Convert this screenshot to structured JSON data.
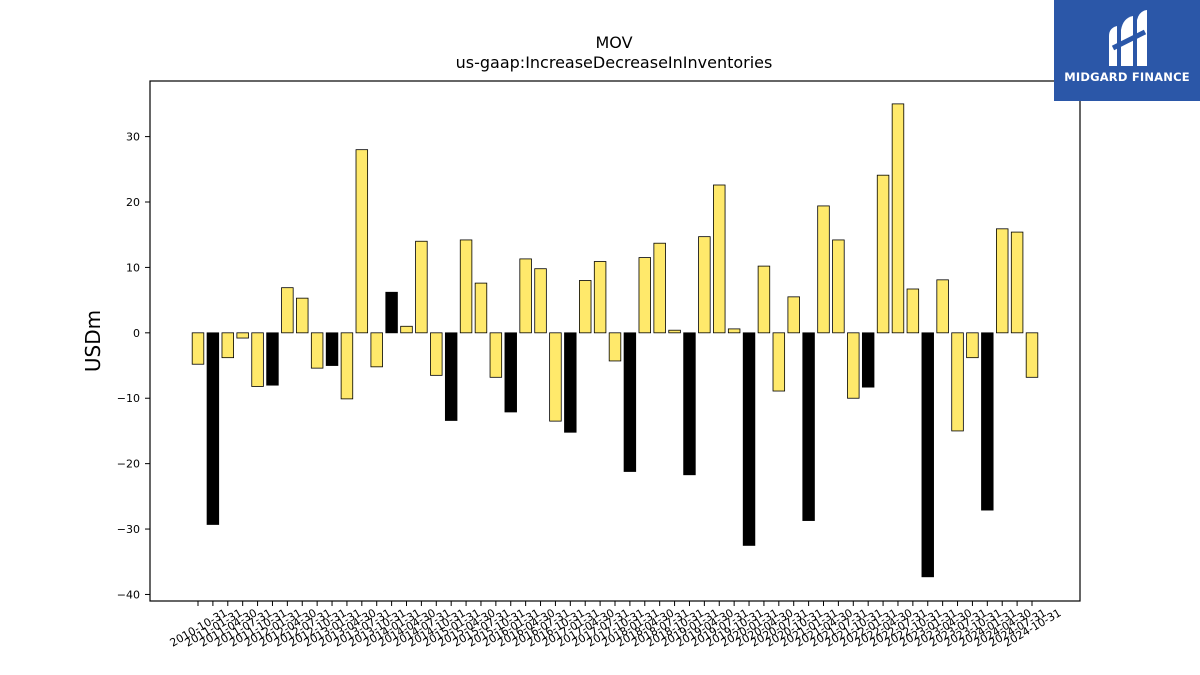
{
  "logo": {
    "text": "MIDGARD FINANCE",
    "bg": "#2b57a8"
  },
  "colors": {
    "positive_fill": "#ffe96b",
    "negative_fill": "#000000",
    "edge": "#000000"
  },
  "chart_data": {
    "type": "bar",
    "title": "MOV",
    "subtitle": "us-gaap:IncreaseDecreaseInInventories",
    "xlabel": "",
    "ylabel": "USDm",
    "ylim": [
      -41,
      38.5
    ],
    "yticks": [
      -40,
      -30,
      -20,
      -10,
      0,
      10,
      20,
      30
    ],
    "grid": false,
    "categories": [
      "2010-10-31",
      "2011-01-31",
      "2011-04-30",
      "2011-07-31",
      "2011-10-31",
      "2012-01-31",
      "2012-04-30",
      "2012-07-31",
      "2012-10-31",
      "2013-01-31",
      "2013-04-30",
      "2013-07-31",
      "2013-10-31",
      "2014-01-31",
      "2014-04-30",
      "2014-07-31",
      "2014-10-31",
      "2015-01-31",
      "2015-04-30",
      "2015-07-31",
      "2015-10-31",
      "2016-01-31",
      "2016-04-30",
      "2016-07-31",
      "2016-10-31",
      "2017-01-31",
      "2017-04-30",
      "2017-07-31",
      "2017-10-31",
      "2018-01-31",
      "2018-04-30",
      "2018-07-31",
      "2018-10-31",
      "2019-01-31",
      "2019-04-30",
      "2019-07-31",
      "2019-10-31",
      "2020-01-31",
      "2020-04-30",
      "2020-07-31",
      "2020-10-31",
      "2021-01-31",
      "2021-04-30",
      "2021-07-31",
      "2021-10-31",
      "2022-01-31",
      "2022-04-30",
      "2022-07-31",
      "2022-10-31",
      "2023-01-31",
      "2023-04-30",
      "2023-07-31",
      "2023-10-31",
      "2024-01-31",
      "2024-04-30",
      "2024-07-31",
      "2024-10-31"
    ],
    "values": [
      -4.8,
      -29.3,
      -3.8,
      -0.8,
      -8.2,
      -8.0,
      6.9,
      5.3,
      -5.4,
      -5.0,
      -10.1,
      28.0,
      -5.2,
      6.2,
      1.0,
      14.0,
      -6.5,
      -13.4,
      14.2,
      7.6,
      -6.8,
      -12.1,
      11.3,
      9.8,
      -13.5,
      -15.2,
      8.0,
      10.9,
      -4.3,
      -21.2,
      11.5,
      13.7,
      0.4,
      -21.7,
      14.7,
      22.6,
      0.6,
      -32.5,
      10.2,
      -8.9,
      5.5,
      -28.7,
      19.4,
      14.2,
      -10.0,
      -8.3,
      24.1,
      35.0,
      6.7,
      -37.3,
      8.1,
      -15.0,
      -3.8,
      -27.1,
      15.9,
      15.4,
      -6.8
    ],
    "fill_per_bar": [
      "y",
      "b",
      "y",
      "y",
      "y",
      "b",
      "y",
      "y",
      "y",
      "b",
      "y",
      "y",
      "y",
      "b",
      "y",
      "y",
      "y",
      "b",
      "y",
      "y",
      "y",
      "b",
      "y",
      "y",
      "y",
      "b",
      "y",
      "y",
      "y",
      "b",
      "y",
      "y",
      "y",
      "b",
      "y",
      "y",
      "y",
      "b",
      "y",
      "y",
      "y",
      "b",
      "y",
      "y",
      "y",
      "b",
      "y",
      "y",
      "y",
      "b",
      "y",
      "y",
      "y",
      "b",
      "y",
      "y",
      "y"
    ]
  }
}
